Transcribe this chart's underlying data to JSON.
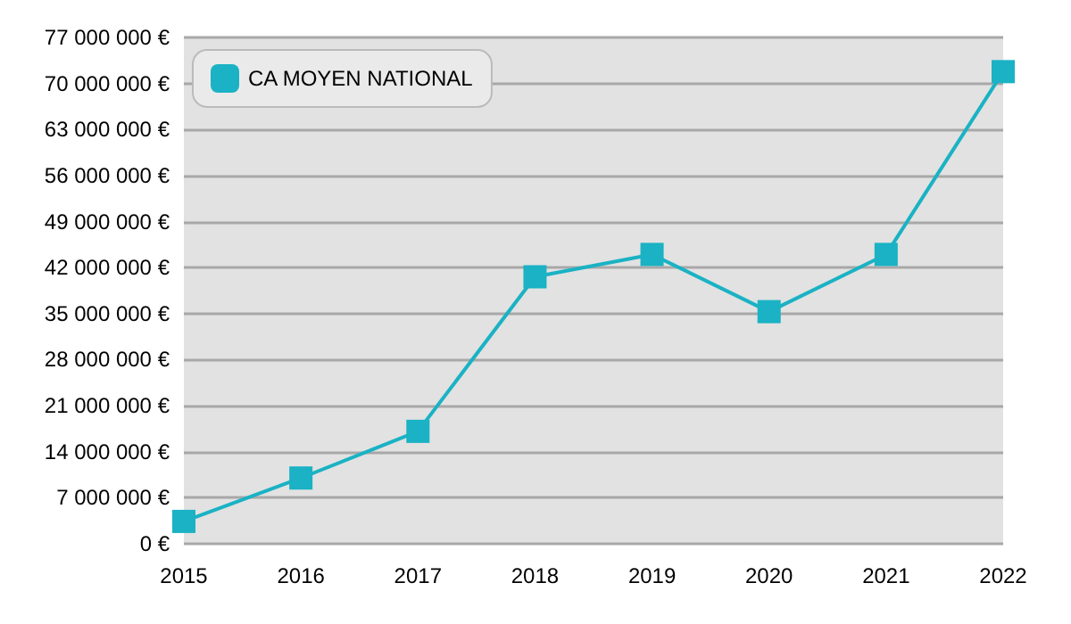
{
  "chart_data": {
    "type": "line",
    "categories": [
      "2015",
      "2016",
      "2017",
      "2018",
      "2019",
      "2020",
      "2021",
      "2022"
    ],
    "series": [
      {
        "name": "CA MOYEN NATIONAL",
        "color": "#1ab2c4",
        "values": [
          3400000,
          10000000,
          17100000,
          40600000,
          44000000,
          35300000,
          44000000,
          71800000
        ]
      }
    ],
    "ylim": [
      0,
      77000000
    ],
    "yticks": [
      {
        "value": 0,
        "label": "0 €"
      },
      {
        "value": 7000000,
        "label": "7 000 000 €"
      },
      {
        "value": 14000000,
        "label": "14 000 000 €"
      },
      {
        "value": 21000000,
        "label": "21 000 000 €"
      },
      {
        "value": 28000000,
        "label": "28 000 000 €"
      },
      {
        "value": 35000000,
        "label": "35 000 000 €"
      },
      {
        "value": 42000000,
        "label": "42 000 000 €"
      },
      {
        "value": 49000000,
        "label": "49 000 000 €"
      },
      {
        "value": 56000000,
        "label": "56 000 000 €"
      },
      {
        "value": 63000000,
        "label": "63 000 000 €"
      },
      {
        "value": 70000000,
        "label": "70 000 000 €"
      },
      {
        "value": 77000000,
        "label": "77 000 000 €"
      }
    ],
    "grid": "y",
    "legend": "top left",
    "marker": "square",
    "line_style": "solid"
  }
}
